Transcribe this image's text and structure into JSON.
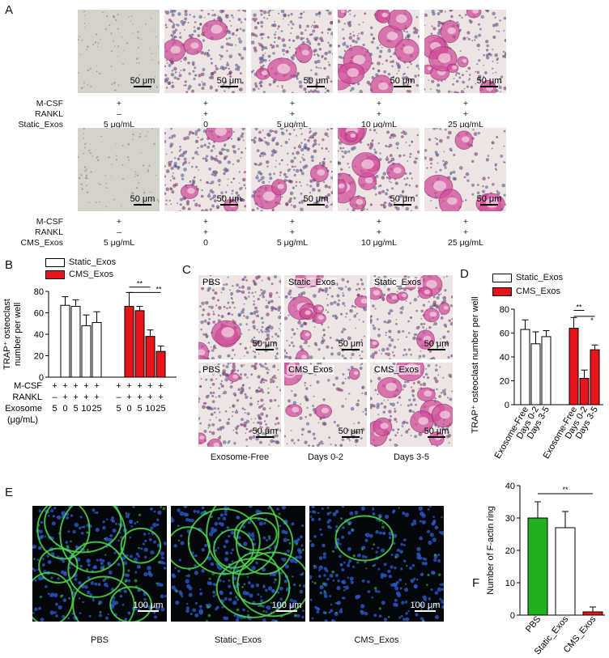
{
  "panels": {
    "A": {
      "letter": "A",
      "rows": [
        {
          "scale_labels": [
            "50 μm",
            "50 μm",
            "50 μm",
            "50 μm",
            "50 μm"
          ],
          "labels": {
            "mcsf": "M-CSF",
            "rankl": "RANKL",
            "exos": "Static_Exos"
          },
          "mcsf": [
            "+",
            "+",
            "+",
            "+",
            "+"
          ],
          "rankl": [
            "–",
            "+",
            "+",
            "+",
            "+"
          ],
          "exos": [
            "5 μg/mL",
            "0",
            "5 μg/mL",
            "10 μg/mL",
            "25 μg/mL"
          ]
        },
        {
          "scale_labels": [
            "50 μm",
            "50 μm",
            "50 μm",
            "50 μm",
            "50 μm"
          ],
          "labels": {
            "mcsf": "M-CSF",
            "rankl": "RANKL",
            "exos": "CMS_Exos"
          },
          "mcsf": [
            "+",
            "+",
            "+",
            "+",
            "+"
          ],
          "rankl": [
            "–",
            "+",
            "+",
            "+",
            "+"
          ],
          "exos": [
            "5 μg/mL",
            "0",
            "5 μg/mL",
            "10 μg/mL",
            "25 μg/mL"
          ]
        }
      ]
    },
    "B": {
      "letter": "B",
      "legend": [
        "Static_Exos",
        "CMS_Exos"
      ],
      "ylabel_line1": "TRAP⁺ osteoclast",
      "ylabel_line2": "number per well",
      "row_labels": {
        "mcsf": "M-CSF",
        "rankl": "RANKL",
        "exosome": "Exosome",
        "unit": "(μg/mL)"
      },
      "static_mcsf": [
        "+",
        "+",
        "+",
        "+",
        "+"
      ],
      "static_rankl": [
        "–",
        "+",
        "+",
        "+",
        "+"
      ],
      "static_exosome": [
        "5",
        "0",
        "5",
        "10",
        "25"
      ],
      "cms_mcsf": [
        "+",
        "+",
        "+",
        "+",
        "+"
      ],
      "cms_rankl": [
        "–",
        "+",
        "+",
        "+",
        "+"
      ],
      "cms_exosome": [
        "5",
        "0",
        "5",
        "10",
        "25"
      ],
      "sig1": "**",
      "sig2": "**"
    },
    "C": {
      "letter": "C",
      "inset_labels": [
        "PBS",
        "Static_Exos",
        "Static_Exos",
        "PBS",
        "CMS_Exos",
        "CMS_Exos"
      ],
      "scale_labels": [
        "50 μm",
        "50 μm",
        "50 μm",
        "50 μm",
        "50 μm",
        "50 μm"
      ],
      "captions": [
        "Exosome-Free",
        "Days 0-2",
        "Days 3-5"
      ]
    },
    "D": {
      "letter": "D",
      "legend": [
        "Static_Exos",
        "CMS_Exos"
      ],
      "ylabel": "TRAP⁺ osteoclast number per well",
      "sig1": "**",
      "sig2": "*"
    },
    "E": {
      "letter": "E",
      "captions": [
        "PBS",
        "Static_Exos",
        "CMS_Exos"
      ],
      "scale_labels": [
        "100 μm",
        "100 μm",
        "100 μm"
      ]
    },
    "F": {
      "letter": "F",
      "ylabel": "Number of F-actin ring",
      "sig": "**"
    }
  },
  "chart_data": [
    {
      "id": "B",
      "type": "bar",
      "ylabel": "TRAP⁺ osteoclast number per well",
      "ylim": [
        0,
        80
      ],
      "yticks": [
        0,
        20,
        40,
        60,
        80
      ],
      "series": [
        {
          "name": "Static_Exos",
          "color": "#ffffff",
          "values": [
            0,
            67,
            66,
            48,
            51
          ],
          "errors": [
            0,
            8,
            6,
            10,
            10
          ]
        },
        {
          "name": "CMS_Exos",
          "color": "#e8141c",
          "values": [
            0,
            66,
            62,
            38,
            24
          ],
          "errors": [
            0,
            13,
            4,
            6,
            5
          ]
        }
      ]
    },
    {
      "id": "D",
      "type": "bar",
      "ylabel": "TRAP⁺ osteoclast number per well",
      "ylim": [
        0,
        80
      ],
      "yticks": [
        0,
        20,
        40,
        60,
        80
      ],
      "categories": [
        "Exosome-Free",
        "Days 0-2",
        "Days 3-5"
      ],
      "series": [
        {
          "name": "Static_Exos",
          "color": "#ffffff",
          "values": [
            63,
            51,
            57
          ],
          "errors": [
            8,
            10,
            5
          ]
        },
        {
          "name": "CMS_Exos",
          "color": "#e8141c",
          "values": [
            64,
            22,
            46
          ],
          "errors": [
            9,
            7,
            4
          ]
        }
      ]
    },
    {
      "id": "F",
      "type": "bar",
      "ylabel": "Number of F-actin ring",
      "ylim": [
        0,
        40
      ],
      "yticks": [
        0,
        10,
        20,
        30,
        40
      ],
      "categories": [
        "PBS",
        "Static_Exos",
        "CMS_Exos"
      ],
      "values": [
        30,
        27,
        1
      ],
      "errors": [
        5,
        5,
        1.5
      ],
      "colors": [
        "#22b021",
        "#ffffff",
        "#e8141c"
      ]
    }
  ]
}
